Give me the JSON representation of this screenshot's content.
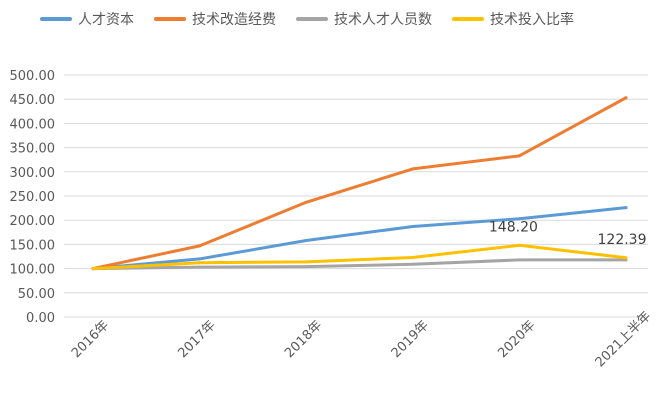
{
  "chart_data": {
    "type": "line",
    "categories": [
      "2016年",
      "2017年",
      "2018年",
      "2019年",
      "2020年",
      "2021上半年"
    ],
    "y_ticks": [
      "0.00",
      "50.00",
      "100.00",
      "150.00",
      "200.00",
      "250.00",
      "300.00",
      "350.00",
      "400.00",
      "450.00",
      "500.00"
    ],
    "ylim": [
      0,
      500
    ],
    "grid": true,
    "legend_position": "top",
    "series": [
      {
        "name": "人才资本",
        "color": "#5b9bd5",
        "values": [
          100,
          120,
          158,
          187,
          203,
          226
        ]
      },
      {
        "name": "技术改造经费",
        "color": "#ed7d31",
        "values": [
          100,
          147,
          237,
          306,
          333,
          453
        ]
      },
      {
        "name": "技术人才人员数",
        "color": "#a5a5a5",
        "values": [
          100,
          103,
          104,
          109,
          118,
          118
        ]
      },
      {
        "name": "技术投入比率",
        "color": "#ffc000",
        "values": [
          100,
          112,
          114,
          123,
          148.2,
          122.39
        ]
      }
    ],
    "data_labels": [
      {
        "series": 3,
        "point": 4,
        "text": "148.20"
      },
      {
        "series": 3,
        "point": 5,
        "text": "122.39"
      }
    ]
  }
}
